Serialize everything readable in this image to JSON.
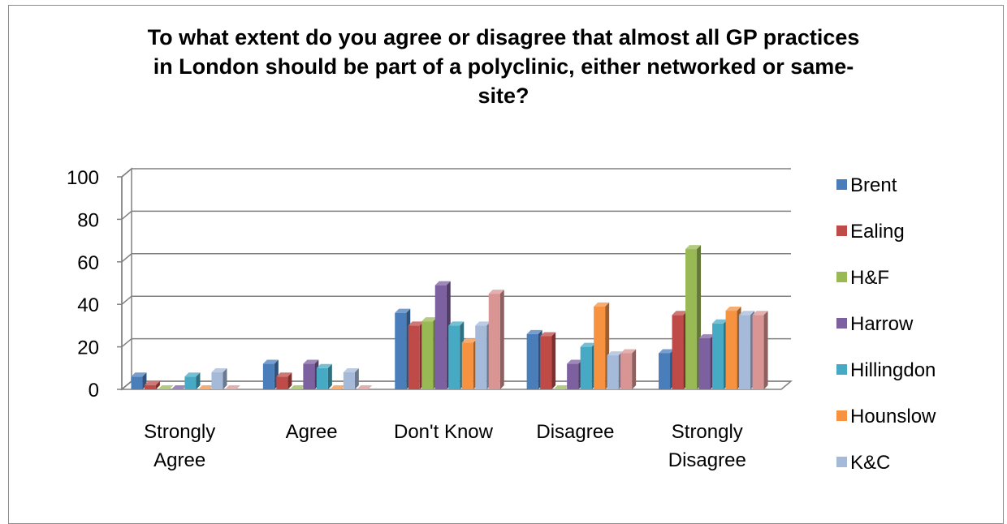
{
  "chart_data": {
    "type": "bar",
    "title": "To what extent do you agree or disagree that almost all GP practices\nin London should be part of a polyclinic, either networked or same-\nsite?",
    "categories": [
      [
        "Strongly",
        "Agree"
      ],
      [
        "Agree"
      ],
      [
        "Don't Know"
      ],
      [
        "Disagree"
      ],
      [
        "Strongly",
        "Disagree"
      ]
    ],
    "ylim": [
      0,
      100
    ],
    "yticks": [
      0,
      20,
      40,
      60,
      80,
      100
    ],
    "grid": true,
    "legend_position": "right",
    "series": [
      {
        "name": "Brent",
        "color": "#4a7ebb",
        "values": [
          6,
          12,
          36,
          26,
          17
        ]
      },
      {
        "name": "Ealing",
        "color": "#be4b48",
        "values": [
          2,
          6,
          30,
          25,
          35
        ]
      },
      {
        "name": "H&F",
        "color": "#98b954",
        "values": [
          0,
          0,
          32,
          0,
          66
        ]
      },
      {
        "name": "Harrow",
        "color": "#7d60a0",
        "values": [
          0,
          12,
          49,
          12,
          24
        ]
      },
      {
        "name": "Hillingdon",
        "color": "#46aac5",
        "values": [
          6,
          10,
          30,
          20,
          31
        ]
      },
      {
        "name": "Hounslow",
        "color": "#f69240",
        "values": [
          0,
          0,
          22,
          39,
          37
        ]
      },
      {
        "name": "K&C",
        "color": "#a5b9d9",
        "values": [
          8,
          8,
          30,
          16,
          35
        ]
      },
      {
        "name": "",
        "color": "#d99594",
        "values": [
          0,
          0,
          45,
          17,
          35
        ]
      }
    ]
  }
}
